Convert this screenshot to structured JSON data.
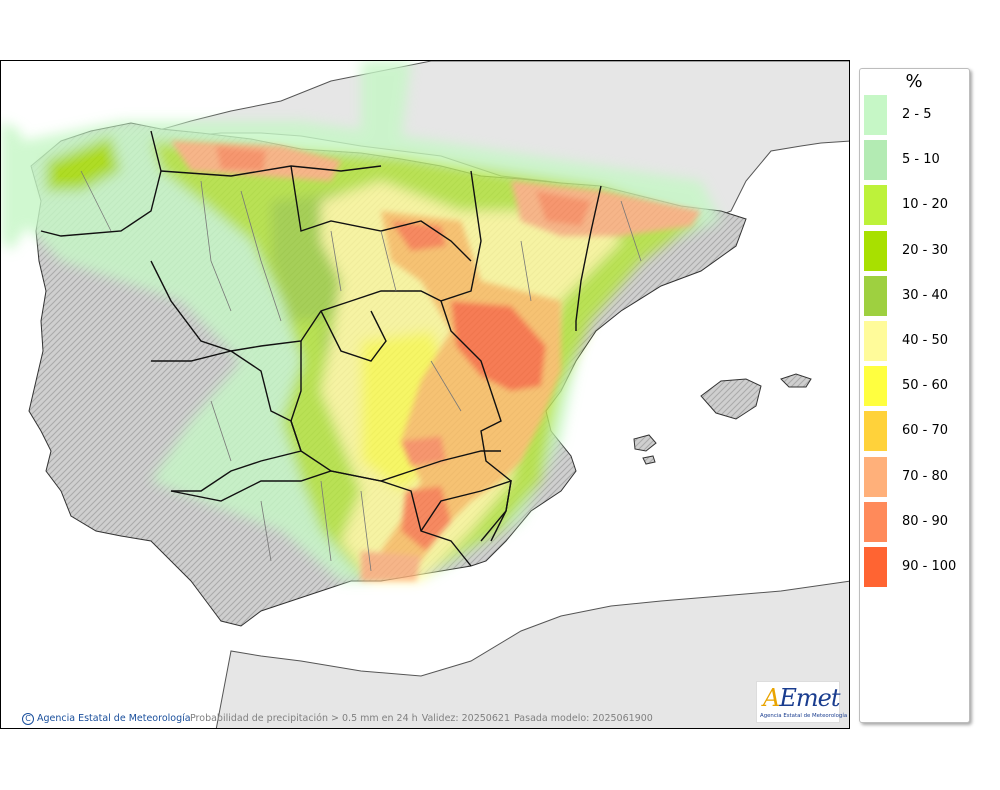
{
  "legend": {
    "title": "%",
    "items": [
      {
        "label": "2 - 5",
        "color": "#c6f7c6"
      },
      {
        "label": "5 - 10",
        "color": "#b3ebb3"
      },
      {
        "label": "10 - 20",
        "color": "#bdf23a"
      },
      {
        "label": "20 - 30",
        "color": "#a8e000"
      },
      {
        "label": "30 - 40",
        "color": "#9ed040"
      },
      {
        "label": "40 - 50",
        "color": "#fffb9a"
      },
      {
        "label": "50 - 60",
        "color": "#ffff40"
      },
      {
        "label": "60 - 70",
        "color": "#ffd23a"
      },
      {
        "label": "70 - 80",
        "color": "#ffb07a"
      },
      {
        "label": "80 - 90",
        "color": "#ff8a5a"
      },
      {
        "label": "90 - 100",
        "color": "#ff6432"
      }
    ]
  },
  "footer": {
    "credit": "Agencia Estatal de Meteorología",
    "caption": "Probabilidad de precipitación > 0.5 mm en 24 h",
    "validity": "Validez: 20250621",
    "model_run": "Pasada modelo: 2025061900"
  },
  "logo": {
    "wordmark": "AEmet",
    "subtitle": "Agencia Estatal de Meteorología"
  },
  "colors": {
    "land": "#d9d9d9",
    "sea": "#ffffff",
    "border": "#1a1a1a"
  }
}
